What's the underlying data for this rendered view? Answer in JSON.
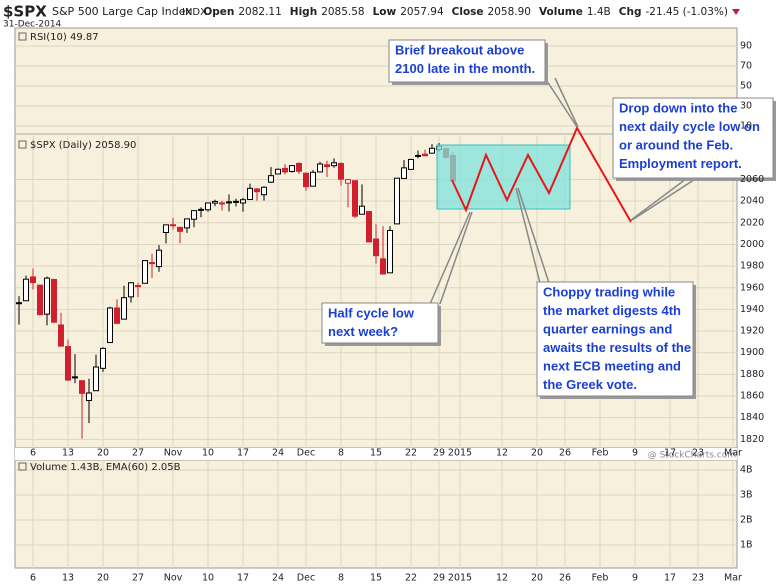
{
  "chart_data": {
    "type": "candlestick",
    "symbol": "$SPX",
    "name": "S&P 500 Large Cap Index",
    "exchange": "INDX",
    "date": "31-Dec-2014",
    "quote": [
      {
        "label": "Open",
        "value": "2082.11"
      },
      {
        "label": "High",
        "value": "2085.58"
      },
      {
        "label": "Low",
        "value": "2057.94"
      },
      {
        "label": "Close",
        "value": "2058.90"
      },
      {
        "label": "Volume",
        "value": "1.4B"
      },
      {
        "label": "Chg",
        "value": "-21.45 (-1.03%)"
      }
    ],
    "rsi_label": "RSI(10) 49.87",
    "price_label": "$SPX (Daily) 2058.90",
    "volume_label": "Volume 1.43B, EMA(60) 2.05B",
    "watermark": "@ StockCharts.com",
    "up_color": "#000000",
    "down_color": "#d0202e",
    "grid": true,
    "open": [
      1945.8,
      1948.0,
      1970.0,
      1962.4,
      1935.6,
      1967.7,
      1925.6,
      1905.7,
      1877.1,
      1874.2,
      1855.9,
      1864.9,
      1885.6,
      1909.4,
      1941.3,
      1931.0,
      1951.6,
      1962.0,
      1964.1,
      1983.3,
      1979.5,
      2011.0,
      2018.2,
      2015.8,
      2015.3,
      2023.3,
      2032.4,
      2032.0,
      2038.2,
      2037.8,
      2039.2,
      2039.7,
      2038.3,
      2041.5,
      2051.2,
      2045.9,
      2057.5,
      2065.1,
      2070.2,
      2067.4,
      2074.8,
      2065.8,
      2053.8,
      2067.0,
      2073.6,
      2072.8,
      2074.8,
      2056.6,
      2058.9,
      2027.9,
      2030.4,
      2005.0,
      1986.7,
      1973.8,
      2019.0,
      2061.0,
      2069.3,
      2081.5,
      2083.3,
      2084.3,
      2087.6,
      2088.5,
      2082.11
    ],
    "high": [
      1952.3,
      1971.2,
      1977.8,
      1962.4,
      1970.4,
      1967.7,
      1936.9,
      1912.1,
      1898.7,
      1874.2,
      1876.0,
      1898.2,
      1905.0,
      1942.5,
      1949.3,
      1961.9,
      1965.3,
      1964.6,
      1985.1,
      1991.4,
      1999.4,
      2018.2,
      2024.5,
      2015.8,
      2023.8,
      2031.6,
      2034.3,
      2038.7,
      2041.3,
      2040.3,
      2046.2,
      2042.2,
      2043.1,
      2056.1,
      2052.1,
      2053.8,
      2071.5,
      2070.2,
      2074.2,
      2073.3,
      2075.8,
      2065.8,
      2068.8,
      2076.3,
      2077.3,
      2079.5,
      2075.8,
      2060.6,
      2058.9,
      2055.5,
      2030.4,
      2018.7,
      2016.9,
      2016.8,
      2061.2,
      2077.9,
      2078.8,
      2086.7,
      2087.6,
      2092.7,
      2093.6,
      2088.5,
      2085.58
    ],
    "low": [
      1926.0,
      1948.0,
      1958.4,
      1934.9,
      1925.3,
      1927.6,
      1906.1,
      1874.1,
      1871.8,
      1820.7,
      1835.0,
      1864.9,
      1882.3,
      1909.4,
      1926.8,
      1931.0,
      1946.3,
      1951.4,
      1964.1,
      1969.0,
      1974.8,
      2001.0,
      2013.7,
      2001.0,
      2010.7,
      2015.9,
      2025.1,
      2030.2,
      2035.3,
      2031.3,
      2030.4,
      2035.2,
      2030.2,
      2041.5,
      2040.4,
      2040.5,
      2056.8,
      2065.1,
      2064.8,
      2066.4,
      2065.1,
      2049.6,
      2053.8,
      2066.7,
      2062.3,
      2070.8,
      2054.3,
      2034.2,
      2024.3,
      2027.9,
      2002.3,
      1982.3,
      1972.6,
      1973.8,
      2019.0,
      2061.0,
      2069.3,
      2079.5,
      2081.9,
      2084.3,
      2085.8,
      2079.5,
      2057.94
    ],
    "close": [
      1946.2,
      1967.9,
      1964.8,
      1935.1,
      1968.9,
      1928.2,
      1906.1,
      1874.7,
      1877.7,
      1862.5,
      1862.8,
      1886.8,
      1904.0,
      1941.3,
      1927.1,
      1950.8,
      1964.6,
      1961.6,
      1985.1,
      1982.3,
      1994.7,
      2018.1,
      2017.8,
      2012.1,
      2023.6,
      2031.2,
      2031.9,
      2038.3,
      2039.7,
      2038.3,
      2039.3,
      2039.8,
      2041.3,
      2051.8,
      2048.7,
      2052.8,
      2063.5,
      2069.4,
      2067.0,
      2072.8,
      2067.6,
      2053.4,
      2066.6,
      2074.3,
      2071.9,
      2075.4,
      2060.3,
      2059.8,
      2026.1,
      2035.3,
      2002.3,
      1989.6,
      1972.7,
      2012.9,
      2061.2,
      2070.7,
      2078.5,
      2082.2,
      2081.9,
      2088.8,
      2090.6,
      2080.4,
      2058.9
    ],
    "xlim": [
      -0.57,
      102.57
    ],
    "xticks": [
      {
        "value": 2,
        "label": "6"
      },
      {
        "value": 7,
        "label": "13"
      },
      {
        "value": 12,
        "label": "20"
      },
      {
        "value": 17,
        "label": "27"
      },
      {
        "value": 22,
        "label": "Nov"
      },
      {
        "value": 27,
        "label": "10"
      },
      {
        "value": 32,
        "label": "17"
      },
      {
        "value": 37,
        "label": "24"
      },
      {
        "value": 41,
        "label": "Dec"
      },
      {
        "value": 46,
        "label": "8"
      },
      {
        "value": 51,
        "label": "15"
      },
      {
        "value": 56,
        "label": "22"
      },
      {
        "value": 60,
        "label": "29"
      },
      {
        "value": 63,
        "label": "2015"
      },
      {
        "value": 69,
        "label": "12"
      },
      {
        "value": 74,
        "label": "20"
      },
      {
        "value": 78,
        "label": "26"
      },
      {
        "value": 83,
        "label": "Feb"
      },
      {
        "value": 88,
        "label": "9"
      },
      {
        "value": 93,
        "label": "17"
      },
      {
        "value": 97,
        "label": "23"
      },
      {
        "value": 102,
        "label": "Mar"
      }
    ],
    "ylim": [
      1812,
      2102
    ],
    "yticks": [
      1820,
      1840,
      1860,
      1880,
      1900,
      1920,
      1940,
      1960,
      1980,
      2000,
      2020,
      2040,
      2060
    ],
    "rsi_ylim": [
      2,
      108
    ],
    "rsi_yticks": [
      10,
      30,
      50,
      70,
      90
    ],
    "volume_ylim": [
      0,
      4.4
    ],
    "volume_yticks": [
      {
        "value": 1,
        "label": "1B"
      },
      {
        "value": 2,
        "label": "2B"
      },
      {
        "value": 3,
        "label": "3B"
      },
      {
        "value": 4,
        "label": "4B"
      }
    ],
    "annotations": [
      {
        "lines": [
          "Brief breakout above",
          "2100 late in the month."
        ]
      },
      {
        "lines": [
          "Drop down into the",
          "next daily cycle low on",
          "or around the Feb.",
          "Employment report."
        ]
      },
      {
        "lines": [
          "Half cycle low",
          "next week?"
        ]
      },
      {
        "lines": [
          "Choppy trading while",
          "the market digests 4th",
          "quarter earnings and",
          "awaits the results of the",
          "next ECB meeting and",
          "the Greek vote."
        ]
      }
    ]
  }
}
